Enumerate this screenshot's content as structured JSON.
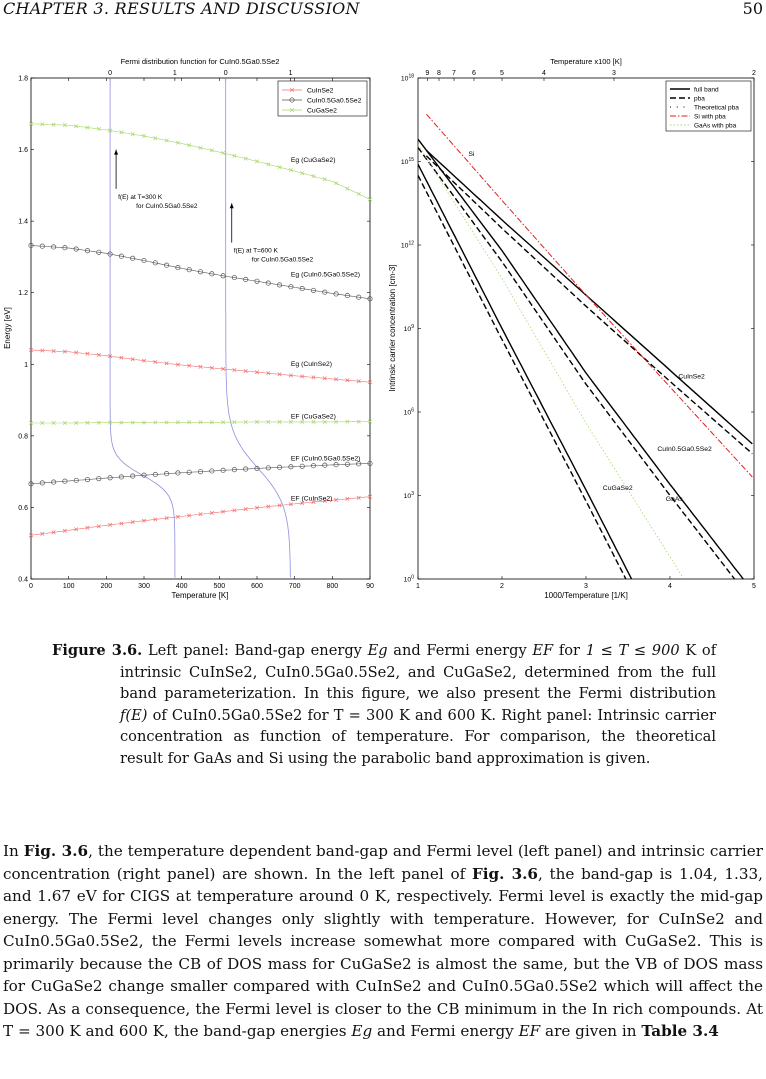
{
  "running_head": {
    "chapter": "CHAPTER 3.  RESULTS AND DISCUSSION",
    "page_number": "50"
  },
  "chart_data": [
    {
      "type": "line",
      "title": "Fermi distribution function for CuIn0.5Ga0.5Se2",
      "xlabel": "Temperature  [K]",
      "ylabel": "Energy [eV]",
      "xlim": [
        0,
        900
      ],
      "ylim": [
        0.4,
        1.8
      ],
      "x_ticks": [
        "0",
        "100",
        "200",
        "300",
        "400",
        "500",
        "600",
        "700",
        "800",
        "90"
      ],
      "y_ticks": [
        "0.4",
        "0.6",
        "0.8",
        "1",
        "1.2",
        "1.4",
        "1.6",
        "1.8"
      ],
      "top_ticks": [
        "0",
        "1",
        "0",
        "1"
      ],
      "legend": [
        "CuInSe2",
        "CuIn0.5Ga0.5Se2",
        "CuGaSe2"
      ],
      "legend_position": "top-right",
      "series": [
        {
          "name": "Eg (CuGaSe2)",
          "color": "#a6d86a",
          "marker": "x",
          "x": [
            0,
            100,
            200,
            300,
            400,
            500,
            600,
            700,
            800,
            900
          ],
          "y": [
            1.672,
            1.668,
            1.655,
            1.638,
            1.617,
            1.593,
            1.567,
            1.54,
            1.511,
            1.461
          ]
        },
        {
          "name": "Eg (CuIn0.5Ga0.5Se2)",
          "color": "#555555",
          "marker": "o",
          "x": [
            0,
            100,
            200,
            300,
            400,
            500,
            600,
            700,
            800,
            900
          ],
          "y": [
            1.332,
            1.325,
            1.31,
            1.29,
            1.268,
            1.249,
            1.232,
            1.215,
            1.198,
            1.183
          ]
        },
        {
          "name": "Eg (CuInSe2)",
          "color": "#f07070",
          "marker": "x",
          "x": [
            0,
            100,
            200,
            300,
            400,
            500,
            600,
            700,
            800,
            900
          ],
          "y": [
            1.04,
            1.035,
            1.024,
            1.01,
            0.998,
            0.988,
            0.978,
            0.968,
            0.959,
            0.95
          ]
        },
        {
          "name": "EF (CuGaSe2)",
          "color": "#a6d86a",
          "marker": "x",
          "x": [
            0,
            100,
            200,
            300,
            400,
            500,
            600,
            700,
            800,
            900
          ],
          "y": [
            0.836,
            0.836,
            0.837,
            0.837,
            0.838,
            0.838,
            0.839,
            0.839,
            0.839,
            0.84
          ]
        },
        {
          "name": "EF (CuIn0.5Ga0.5Se2)",
          "color": "#555555",
          "marker": "o",
          "x": [
            0,
            100,
            200,
            300,
            400,
            500,
            600,
            700,
            800,
            900
          ],
          "y": [
            0.666,
            0.674,
            0.682,
            0.69,
            0.697,
            0.703,
            0.709,
            0.714,
            0.719,
            0.723
          ]
        },
        {
          "name": "EF (CuInSe2)",
          "color": "#f07070",
          "marker": "x",
          "x": [
            0,
            100,
            200,
            300,
            400,
            500,
            600,
            700,
            800,
            900
          ],
          "y": [
            0.522,
            0.536,
            0.55,
            0.563,
            0.575,
            0.587,
            0.599,
            0.61,
            0.62,
            0.63
          ]
        }
      ],
      "fermi_curves": [
        {
          "label": "f(E) at T=300 K for CuIn0.5Ga0.5Se2",
          "color": "#8e8ee0",
          "x_zero": 210,
          "x_one": 382,
          "center_ev": 0.69,
          "kT_ev": 0.02585
        },
        {
          "label": "f(E) at T=600 K for CuIn0.5Ga0.5Se2",
          "color": "#8e8ee0",
          "x_zero": 517,
          "x_one": 689,
          "center_ev": 0.709,
          "kT_ev": 0.0517
        }
      ],
      "annotations": [
        {
          "text": "Eg (CuGaSe2)",
          "x": 690,
          "y": 1.565
        },
        {
          "text": "Eg (CuIn0.5Ga0.5Se2)",
          "x": 690,
          "y": 1.245
        },
        {
          "text": "Eg (CuInSe2)",
          "x": 690,
          "y": 0.995
        },
        {
          "text": "EF (CuGaSe2)",
          "x": 690,
          "y": 0.848
        },
        {
          "text": "EF (CuIn0.5Ga0.5Se2)",
          "x": 690,
          "y": 0.731
        },
        {
          "text": "EF (CuInSe2)",
          "x": 690,
          "y": 0.62
        }
      ]
    },
    {
      "type": "line",
      "title": "Temperature  x100 [K]",
      "xlabel": "1000/Temperature [1/K]",
      "ylabel": "Intrinsic carrier concentration [cm-3]",
      "xlim": [
        1,
        5
      ],
      "y_log10_range": [
        0,
        18
      ],
      "x_ticks": [
        "1",
        "2",
        "3",
        "4",
        "5"
      ],
      "y_ticks": [
        "10^0",
        "10^3",
        "10^6",
        "10^9",
        "10^12",
        "10^15",
        "10^18"
      ],
      "top_ticks": [
        "9",
        "8",
        "7",
        "6",
        "5",
        "4",
        "3",
        "2"
      ],
      "legend": [
        "full band",
        "pba",
        "Theoretical pba",
        "Si with pba",
        "GaAs with pba"
      ],
      "legend_position": "top-right",
      "series": [
        {
          "name": "CuInSe2 full band",
          "style": "solid",
          "color": "#000000",
          "x": [
            1.1,
            2.0,
            3.0,
            4.0,
            5.0
          ],
          "log10_y": [
            15.4,
            12.9,
            10.2,
            7.5,
            4.8
          ]
        },
        {
          "name": "CuInSe2 pba",
          "style": "dashed",
          "color": "#000000",
          "x": [
            1.1,
            2.0,
            3.0,
            4.0,
            5.0
          ],
          "log10_y": [
            15.2,
            12.6,
            9.8,
            7.1,
            4.45
          ]
        },
        {
          "name": "Si with pba",
          "style": "dashdot",
          "color": "#e02020",
          "x": [
            1.1,
            2.0,
            3.0,
            4.0,
            5.0
          ],
          "log10_y": [
            16.7,
            13.6,
            10.2,
            6.9,
            3.6
          ]
        },
        {
          "name": "CuIn0.5Ga0.5Se2 full band",
          "style": "solid",
          "color": "#000000",
          "x": [
            1.0,
            2.0,
            3.0,
            4.0,
            5.0
          ],
          "log10_y": [
            15.8,
            11.8,
            7.4,
            3.4,
            -0.5
          ]
        },
        {
          "name": "CuIn0.5Ga0.5Se2 pba",
          "style": "dashed",
          "color": "#000000",
          "x": [
            1.0,
            2.0,
            3.0,
            4.0,
            5.0
          ],
          "log10_y": [
            15.5,
            11.4,
            7.0,
            3.0,
            -0.9
          ]
        },
        {
          "name": "GaAs with pba",
          "style": "dotted",
          "color": "#a6d86a",
          "x": [
            1.0,
            2.0,
            3.0,
            4.0,
            4.9
          ],
          "log10_y": [
            15.6,
            10.8,
            5.6,
            0.8,
            -3.6
          ]
        },
        {
          "name": "CuGaSe2 full band",
          "style": "solid",
          "color": "#000000",
          "x": [
            1.0,
            2.0,
            3.0,
            4.0,
            4.6
          ],
          "log10_y": [
            14.9,
            9.0,
            3.2,
            -2.7,
            -6.2
          ]
        },
        {
          "name": "CuGaSe2 pba",
          "style": "dashed",
          "color": "#000000",
          "x": [
            1.0,
            2.0,
            3.0,
            4.0,
            4.6
          ],
          "log10_y": [
            14.5,
            8.6,
            2.8,
            -3.1,
            -6.6
          ]
        }
      ],
      "annotations": [
        {
          "text": "Si",
          "x": 1.6,
          "log10_y": 15.2
        },
        {
          "text": "CuInSe2",
          "x": 4.1,
          "log10_y": 7.2
        },
        {
          "text": "CuIn0.5Ga0.5Se2",
          "x": 3.85,
          "log10_y": 4.6
        },
        {
          "text": "CuGaSe2",
          "x": 3.2,
          "log10_y": 3.2
        },
        {
          "text": "GaAs",
          "x": 3.95,
          "log10_y": 2.8
        }
      ]
    }
  ],
  "caption": {
    "label": "Figure 3.6.",
    "text_1": "Left panel: Band-gap energy",
    "math_eg": "Eg",
    "text_2": "and Fermi energy",
    "math_ef": "EF",
    "text_3": "for",
    "math_range": "1 ≤ T ≤ 900",
    "text_4": "K of intrinsic CuInSe2, CuIn0.5Ga0.5Se2, and CuGaSe2, determined from the full band parameterization. In this figure, we also present the Fermi distribution",
    "math_fe": "f(E)",
    "text_5": "of CuIn0.5Ga0.5Se2 for T = 300 K and 600 K. Right panel: Intrinsic carrier concentration as function of temperature. For comparison, the theoretical result for GaAs and Si using the parabolic band approximation is given."
  },
  "body": {
    "p1": "In",
    "fig_ref_1": "Fig. 3.6",
    "p2": ", the temperature dependent band-gap and Fermi level (left panel) and intrinsic carrier concentration (right panel) are shown. In the left panel of",
    "fig_ref_2": "Fig. 3.6",
    "p3": ", the band-gap is 1.04, 1.33, and 1.67 eV for CIGS at temperature around 0 K, respectively. Fermi level is exactly the mid-gap energy. The Fermi level changes only slightly with temperature. However, for CuInSe2 and CuIn0.5Ga0.5Se2, the Fermi levels increase somewhat more compared with CuGaSe2. This is primarily because the CB of DOS mass for CuGaSe2 is almost the same, but the VB of DOS mass for CuGaSe2 change smaller compared with CuInSe2 and CuIn0.5Ga0.5Se2 which will affect the DOS. As a consequence, the Fermi level is closer to the CB minimum in the In rich compounds. At T = 300 K and 600 K, the band-gap energies",
    "math_eg": "Eg",
    "p4": "and Fermi energy",
    "math_ef": "EF",
    "p5": "are given in",
    "table_ref": "Table 3.4"
  }
}
